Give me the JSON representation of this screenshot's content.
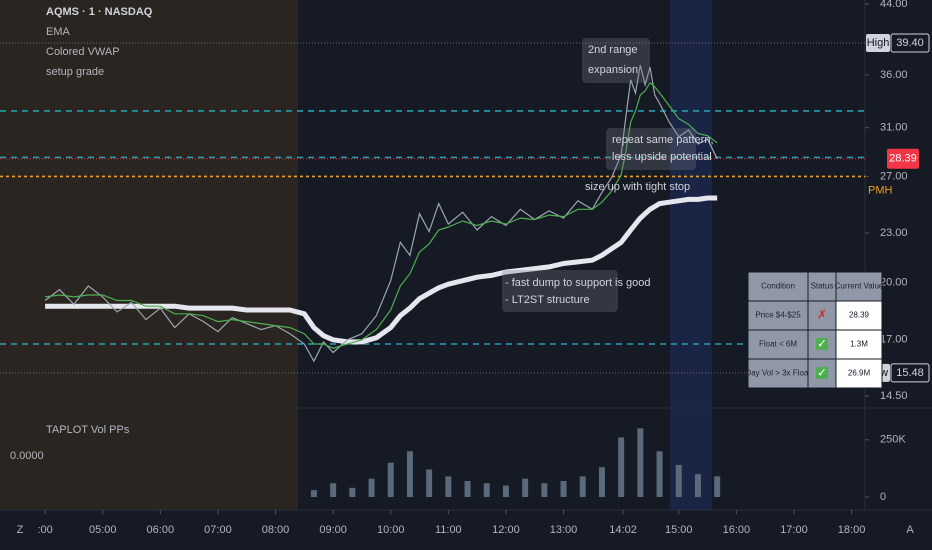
{
  "header": {
    "symbol": "AQMS · 1 · NASDAQ",
    "indicator": "setup grade"
  },
  "chart_data": [
    {
      "type": "line",
      "log_scale": true,
      "color": "#9aa6b0",
      "x": [
        240,
        255,
        270,
        285,
        300,
        315,
        330,
        345,
        360,
        375,
        390,
        405,
        420,
        435,
        450,
        465,
        480,
        495,
        510,
        520,
        530,
        540,
        555,
        570,
        585,
        600,
        610,
        620,
        630,
        640,
        650,
        660,
        675,
        690,
        705,
        720,
        735,
        750,
        765,
        780,
        795,
        810,
        820,
        830,
        840,
        845,
        850,
        855,
        860,
        865,
        870,
        875,
        880,
        890,
        900,
        910,
        920,
        930,
        940
      ],
      "values": [
        19.0,
        19.6,
        18.8,
        19.8,
        19.2,
        18.4,
        18.9,
        18.0,
        18.6,
        17.6,
        18.3,
        17.9,
        17.4,
        18.1,
        17.8,
        17.5,
        17.7,
        17.3,
        16.8,
        16.0,
        16.9,
        16.4,
        17.0,
        17.3,
        18.2,
        20.1,
        22.4,
        21.6,
        24.3,
        23.1,
        25.0,
        23.6,
        24.4,
        23.2,
        24.1,
        23.5,
        24.6,
        23.9,
        24.5,
        24.0,
        25.2,
        24.6,
        25.8,
        26.9,
        28.7,
        32.0,
        35.5,
        34.2,
        37.0,
        35.0,
        36.8,
        34.0,
        33.2,
        31.5,
        30.2,
        30.8,
        29.6,
        30.0,
        28.39
      ],
      "series": [
        {
          "name": "EMA",
          "color": "#4caf50",
          "values": [
            19.2,
            19.3,
            19.2,
            19.3,
            19.3,
            19.0,
            19.0,
            18.7,
            18.7,
            18.3,
            18.3,
            18.2,
            17.9,
            18.0,
            17.9,
            17.8,
            17.7,
            17.6,
            17.3,
            16.8,
            16.8,
            16.6,
            16.8,
            17.0,
            17.5,
            18.5,
            19.8,
            20.5,
            21.8,
            22.3,
            23.2,
            23.4,
            23.8,
            23.5,
            23.8,
            23.6,
            24.0,
            23.9,
            24.2,
            24.1,
            24.6,
            24.6,
            25.1,
            25.9,
            27.1,
            29.0,
            31.5,
            32.5,
            34.0,
            34.4,
            35.2,
            34.8,
            34.2,
            33.0,
            31.8,
            31.3,
            30.5,
            30.3,
            29.7
          ]
        },
        {
          "name": "Colored VWAP",
          "color": "#e6e6ee",
          "values": [
            18.7,
            18.7,
            18.7,
            18.7,
            18.7,
            18.7,
            18.7,
            18.7,
            18.7,
            18.7,
            18.6,
            18.6,
            18.6,
            18.6,
            18.5,
            18.5,
            18.5,
            18.5,
            18.3,
            17.6,
            17.2,
            17.0,
            16.9,
            16.9,
            17.1,
            17.6,
            18.2,
            18.6,
            19.1,
            19.4,
            19.7,
            19.9,
            20.1,
            20.3,
            20.4,
            20.6,
            20.7,
            20.8,
            20.9,
            21.1,
            21.2,
            21.3,
            21.6,
            22.0,
            22.4,
            22.8,
            23.2,
            23.6,
            24.0,
            24.3,
            24.6,
            24.8,
            25.0,
            25.1,
            25.2,
            25.3,
            25.3,
            25.4,
            25.4
          ]
        }
      ],
      "ylim": [
        14.5,
        44
      ],
      "yticks": [
        {
          "value": 44,
          "label": "44.00"
        },
        {
          "value": 36,
          "label": "36.00"
        },
        {
          "value": 31,
          "label": "31.00"
        },
        {
          "value": 27,
          "label": "27.00"
        },
        {
          "value": 23,
          "label": "23.00"
        },
        {
          "value": 20,
          "label": "20.00"
        },
        {
          "value": 17,
          "label": "17.00"
        },
        {
          "value": 14.5,
          "label": "14.50"
        }
      ],
      "xlim": [
        193,
        1094
      ],
      "xticks": [
        {
          "value": 240,
          "label": ":00"
        },
        {
          "value": 300,
          "label": "05:00"
        },
        {
          "value": 360,
          "label": "06:00"
        },
        {
          "value": 420,
          "label": "07:00"
        },
        {
          "value": 480,
          "label": "08:00"
        },
        {
          "value": 540,
          "label": "09:00"
        },
        {
          "value": 600,
          "label": "10:00"
        },
        {
          "value": 660,
          "label": "11:00"
        },
        {
          "value": 720,
          "label": "12:00"
        },
        {
          "value": 780,
          "label": "13:00"
        },
        {
          "value": 842,
          "label": "14:02"
        },
        {
          "value": 900,
          "label": "15:00"
        },
        {
          "value": 960,
          "label": "16:00"
        },
        {
          "value": 1020,
          "label": "17:00"
        },
        {
          "value": 1080,
          "label": "18:00"
        }
      ],
      "levels": [
        {
          "value": 32.5,
          "color": "#26a0b0"
        },
        {
          "value": 28.5,
          "color": "#26a0b0"
        },
        {
          "value": 16.8,
          "color": "#26a0b0"
        },
        {
          "value": 27,
          "color": "#f0a020"
        }
      ],
      "high": {
        "label": "High",
        "value": 39.4,
        "value_label": "39.40"
      },
      "last": 28.39,
      "low": {
        "label": "Low",
        "value": 15.48
      },
      "pmh": "PMH",
      "annotations": [
        "2nd range",
        "expansion",
        "repeat same pattern,",
        "less upside potential",
        "size up with tight stop",
        "- fast dump to support is good",
        "- LT2ST structure"
      ]
    },
    {
      "type": "bar",
      "title": "TAPLOT Vol PPs",
      "subtitle": "0.0000",
      "color": "#5a6a7a",
      "x": [
        520,
        540,
        560,
        580,
        600,
        620,
        640,
        660,
        680,
        700,
        720,
        740,
        760,
        780,
        800,
        820,
        840,
        860,
        880,
        900,
        920,
        940
      ],
      "values": [
        30000,
        60000,
        40000,
        80000,
        150000,
        200000,
        120000,
        90000,
        70000,
        60000,
        50000,
        80000,
        60000,
        70000,
        90000,
        130000,
        260000,
        300000,
        200000,
        140000,
        100000,
        90000
      ],
      "ylim": [
        0,
        380000
      ],
      "yticks": [
        {
          "value": 250000,
          "label": "250K"
        },
        0
      ]
    }
  ],
  "table": {
    "header": [
      "Condition",
      "Status",
      "Current Value"
    ],
    "rows": [
      [
        "Price $4-$25",
        "✗",
        "28.39"
      ],
      [
        "Float < 6M",
        "✓",
        "1.3M"
      ],
      [
        "Day Vol > 3x Float",
        "✓",
        "26.9M"
      ]
    ]
  },
  "controls": [
    "Z",
    "A"
  ]
}
